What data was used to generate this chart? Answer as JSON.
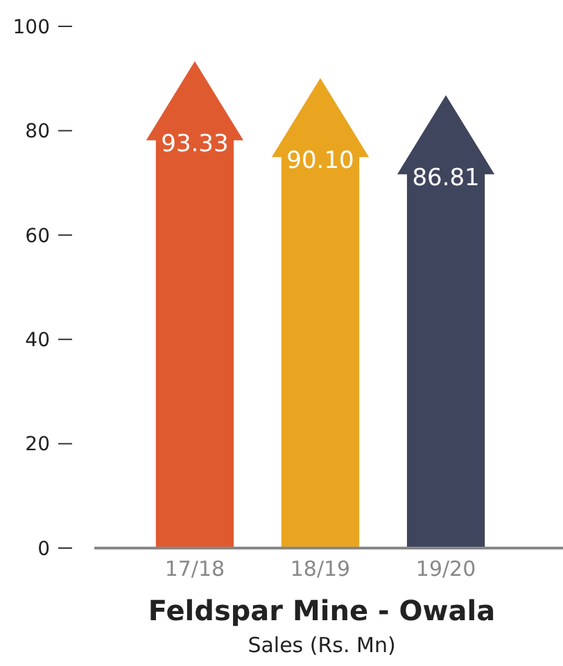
{
  "chart_data": {
    "type": "bar",
    "title": "Feldspar Mine - Owala",
    "subtitle": "Sales (Rs. Mn)",
    "categories": [
      "17/18",
      "18/19",
      "19/20"
    ],
    "values": [
      93.33,
      90.1,
      86.81
    ],
    "colors": [
      "#e05a30",
      "#e9a520",
      "#40455e"
    ],
    "value_labels": [
      "93.33",
      "90.10",
      "86.81"
    ],
    "ylim": [
      0,
      100
    ],
    "yticks": [
      0,
      20,
      40,
      60,
      80,
      100
    ],
    "grid": false
  }
}
